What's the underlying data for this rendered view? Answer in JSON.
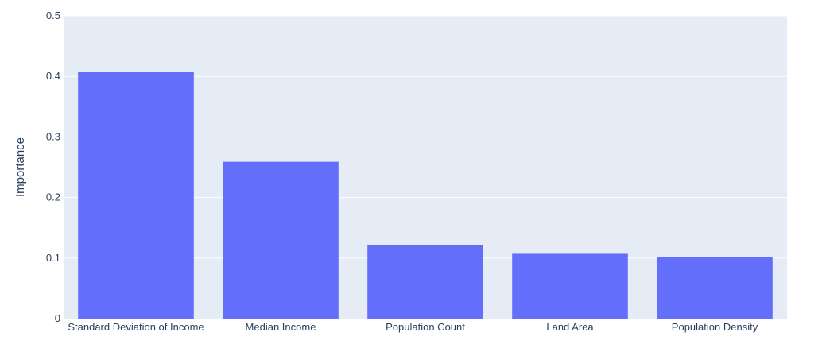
{
  "chart_data": {
    "type": "bar",
    "title": "",
    "xlabel": "",
    "ylabel": "Importance",
    "categories": [
      "Standard Deviation of Income",
      "Median Income",
      "Population Count",
      "Land Area",
      "Population Density"
    ],
    "values": [
      0.407,
      0.259,
      0.122,
      0.107,
      0.102
    ],
    "ylim": [
      0,
      0.5
    ],
    "yticks": [
      0,
      0.1,
      0.2,
      0.3,
      0.4,
      0.5
    ],
    "ytick_labels": [
      "0",
      "0.1",
      "0.2",
      "0.3",
      "0.4",
      "0.5"
    ],
    "grid": true,
    "legend": "none",
    "colors": {
      "bar": "#636efa",
      "plot_background": "#e5ecf6",
      "gridline": "#ffffff",
      "text": "#2a3f5f"
    }
  }
}
